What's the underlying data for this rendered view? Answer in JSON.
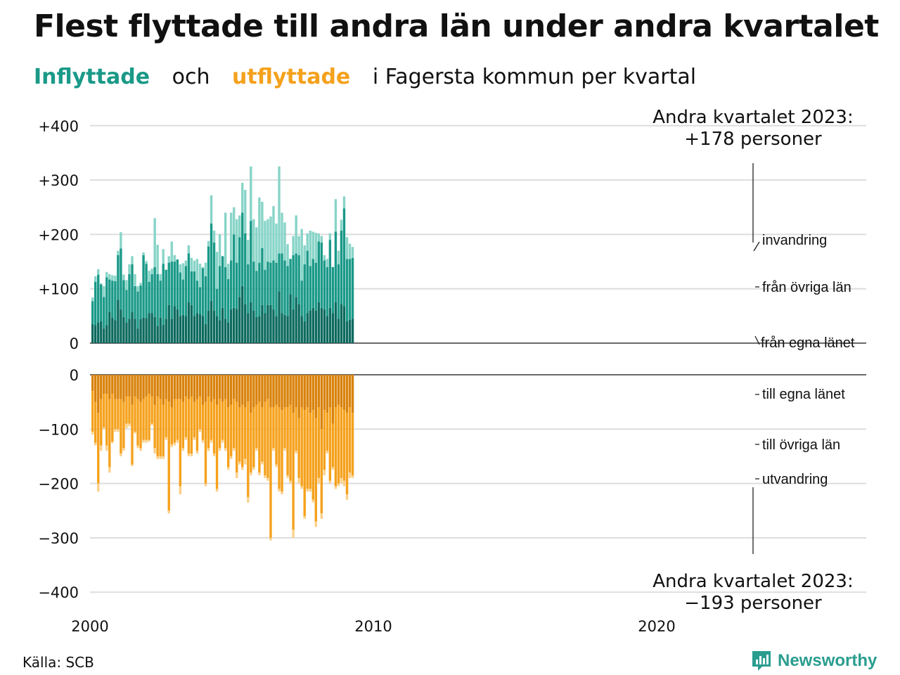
{
  "title": "Flest flyttade till andra län under andra kvartalet",
  "subtitle": {
    "part_in": "Inflyttade",
    "part_and": "och",
    "part_out": "utflyttade",
    "part_rest": "i Fagersta  kommun  per  kvartal"
  },
  "annotation_top": {
    "line1": "Andra kvartalet 2023:",
    "line2": "+178 personer"
  },
  "annotation_bottom": {
    "line1": "Andra kvartalet 2023:",
    "line2": "−193 personer"
  },
  "legend_labels": {
    "invandring": "invandring",
    "fran_ovriga_lan": "från övriga län",
    "fran_egna_lanet": "från egna länet",
    "till_egna_lanet": "till egna länet",
    "till_ovriga_lan": "till övriga län",
    "utvandring": "utvandring"
  },
  "source": "Källa: SCB",
  "logo_text": "Newsworthy",
  "colors": {
    "in_own": "#0c6a5e",
    "in_other": "#1a9988",
    "in_immig": "#88d4c8",
    "out_own": "#d9820b",
    "out_other": "#f5a11c",
    "out_emig": "#fbd08a",
    "grid": "#dddddd"
  },
  "chart_data": {
    "type": "bar",
    "stacked": true,
    "x_start": "2000 Q1",
    "x_ticks": [
      "2000",
      "2010",
      "2020"
    ],
    "top_panel": {
      "y_ticks": [
        "+400",
        "+300",
        "+200",
        "+100",
        "0"
      ],
      "ylim": [
        0,
        400
      ],
      "series": [
        {
          "name": "från egna länet",
          "values": [
            35,
            33,
            38,
            40,
            27,
            33,
            57,
            47,
            42,
            80,
            62,
            48,
            38,
            45,
            57,
            45,
            27,
            44,
            47,
            46,
            55,
            55,
            48,
            32,
            47,
            34,
            45,
            70,
            45,
            68,
            62,
            50,
            52,
            50,
            75,
            70,
            50,
            55,
            53,
            50,
            35,
            60,
            78,
            60,
            50,
            42,
            65,
            45,
            38,
            62,
            65,
            63,
            85,
            105,
            72,
            55,
            75,
            60,
            48,
            50,
            70,
            55,
            70,
            70,
            62,
            50,
            95,
            55,
            52,
            50,
            90,
            62,
            85,
            72,
            50,
            40,
            55,
            60,
            65,
            60,
            75,
            65,
            62,
            50,
            65,
            55,
            75,
            45,
            72,
            68,
            40,
            43,
            45
          ],
          "note": "approximate values"
        },
        {
          "name": "från övriga län",
          "values": [
            42,
            80,
            88,
            68,
            58,
            88,
            60,
            68,
            72,
            82,
            112,
            68,
            60,
            82,
            88,
            60,
            68,
            62,
            115,
            100,
            58,
            72,
            92,
            95,
            68,
            112,
            90,
            78,
            105,
            82,
            92,
            80,
            65,
            92,
            90,
            62,
            82,
            60,
            50,
            88,
            88,
            118,
            142,
            125,
            50,
            100,
            95,
            95,
            80,
            90,
            135,
            85,
            110,
            135,
            130,
            90,
            150,
            90,
            85,
            98,
            105,
            80,
            80,
            78,
            90,
            98,
            70,
            110,
            100,
            92,
            65,
            100,
            80,
            90,
            65,
            105,
            115,
            82,
            90,
            88,
            112,
            120,
            90,
            90,
            125,
            85,
            130,
            100,
            135,
            180,
            115,
            112,
            112
          ],
          "note": "approximate values"
        },
        {
          "name": "invandring",
          "values": [
            7,
            10,
            10,
            2,
            20,
            10,
            10,
            10,
            10,
            8,
            30,
            10,
            18,
            18,
            15,
            22,
            10,
            5,
            5,
            5,
            20,
            10,
            90,
            54,
            12,
            27,
            0,
            12,
            37,
            12,
            0,
            15,
            30,
            10,
            15,
            25,
            20,
            40,
            43,
            2,
            25,
            10,
            52,
            22,
            68,
            58,
            0,
            100,
            28,
            88,
            50,
            80,
            40,
            55,
            80,
            45,
            100,
            78,
            80,
            120,
            85,
            90,
            78,
            85,
            100,
            72,
            160,
            75,
            70,
            40,
            0,
            35,
            70,
            35,
            95,
            35,
            32,
            65,
            50,
            55,
            15,
            12,
            10,
            15,
            12,
            0,
            60,
            25,
            20,
            22,
            40,
            28,
            20
          ],
          "note": "approximate values"
        }
      ]
    },
    "bottom_panel": {
      "y_ticks": [
        "0",
        "−100",
        "−200",
        "−300",
        "−400"
      ],
      "ylim": [
        -400,
        0
      ],
      "series": [
        {
          "name": "till egna länet",
          "values": [
            -30,
            -50,
            -70,
            -45,
            -35,
            -35,
            -45,
            -35,
            -45,
            -45,
            -45,
            -50,
            -40,
            -40,
            -55,
            -40,
            -45,
            -50,
            -45,
            -40,
            -35,
            -40,
            -55,
            -40,
            -45,
            -55,
            -45,
            -50,
            -60,
            -45,
            -45,
            -45,
            -50,
            -40,
            -45,
            -40,
            -50,
            -45,
            -40,
            -55,
            -50,
            -40,
            -50,
            -45,
            -55,
            -45,
            -50,
            -45,
            -60,
            -55,
            -45,
            -50,
            -60,
            -55,
            -60,
            -50,
            -70,
            -60,
            -55,
            -50,
            -60,
            -50,
            -45,
            -60,
            -60,
            -55,
            -60,
            -65,
            -60,
            -60,
            -55,
            -70,
            -60,
            -80,
            -60,
            -65,
            -60,
            -70,
            -65,
            -80,
            -60,
            -100,
            -65,
            -70,
            -60,
            -90,
            -60,
            -55,
            -60,
            -65,
            -70,
            -60,
            -70
          ],
          "note": "approximate values"
        },
        {
          "name": "till övriga län",
          "values": [
            -75,
            -75,
            -130,
            -85,
            -62,
            -95,
            -125,
            -88,
            -55,
            -55,
            -100,
            -85,
            -50,
            -50,
            -110,
            -65,
            -85,
            -85,
            -75,
            -80,
            -85,
            -50,
            -80,
            -110,
            -105,
            -95,
            -70,
            -200,
            -68,
            -80,
            -75,
            -160,
            -85,
            -75,
            -100,
            -105,
            -65,
            -95,
            -60,
            -65,
            -150,
            -95,
            -70,
            -100,
            -155,
            -90,
            -70,
            -90,
            -110,
            -95,
            -90,
            -130,
            -100,
            -115,
            -95,
            -175,
            -110,
            -110,
            -80,
            -130,
            -100,
            -135,
            -145,
            -240,
            -75,
            -110,
            -150,
            -150,
            -75,
            -125,
            -140,
            -215,
            -80,
            -110,
            -145,
            -195,
            -150,
            -140,
            -165,
            -190,
            -130,
            -155,
            -110,
            -70,
            -135,
            -80,
            -145,
            -145,
            -130,
            -130,
            -150,
            -120,
            -115
          ],
          "note": "approximate values"
        },
        {
          "name": "utvandring",
          "values": [
            -5,
            -5,
            -15,
            -10,
            -3,
            -10,
            -10,
            -3,
            -5,
            -5,
            -5,
            -5,
            -8,
            -5,
            -3,
            -3,
            -5,
            -5,
            -5,
            -5,
            -3,
            -3,
            -10,
            -5,
            -5,
            -5,
            -5,
            -5,
            -5,
            -5,
            -5,
            -15,
            -5,
            -5,
            -5,
            -5,
            -5,
            -5,
            -5,
            -5,
            -5,
            -5,
            -5,
            -5,
            -5,
            -5,
            -5,
            -5,
            -5,
            -5,
            -5,
            -10,
            -5,
            -5,
            -10,
            -10,
            -5,
            -5,
            -5,
            -5,
            -5,
            -5,
            -5,
            -5,
            -5,
            -5,
            -5,
            -5,
            -5,
            -5,
            -5,
            -15,
            -5,
            -10,
            -5,
            -5,
            -5,
            -5,
            -5,
            -10,
            -10,
            -10,
            -10,
            -5,
            -5,
            -5,
            -5,
            -5,
            -10,
            -10,
            -10,
            -10,
            -5
          ],
          "note": "approximate values"
        }
      ]
    }
  }
}
